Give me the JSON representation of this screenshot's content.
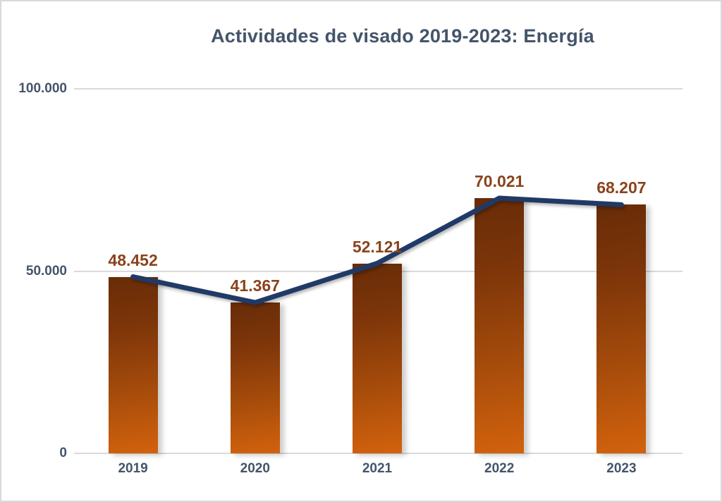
{
  "chart_data": {
    "type": "bar",
    "title": "Actividades de visado 2019-2023: Energía",
    "categories": [
      "2019",
      "2020",
      "2021",
      "2022",
      "2023"
    ],
    "series": [
      {
        "name": "bars",
        "type": "bar",
        "values": [
          48452,
          41367,
          52121,
          70021,
          68207
        ]
      },
      {
        "name": "line",
        "type": "line",
        "values": [
          48452,
          41367,
          52121,
          70021,
          68207
        ]
      }
    ],
    "data_labels": [
      "48.452",
      "41.367",
      "52.121",
      "70.021",
      "68.207"
    ],
    "y_ticks": [
      {
        "value": 0,
        "label": "0"
      },
      {
        "value": 50000,
        "label": "50.000"
      },
      {
        "value": 100000,
        "label": "100.000"
      }
    ],
    "ylim": [
      0,
      100000
    ],
    "xlabel": "",
    "ylabel": "",
    "grid": true,
    "legend": "none"
  },
  "colors": {
    "title": "#44546a",
    "axis_labels": "#44546a",
    "data_labels": "#8a431c",
    "bar_top": "#682c08",
    "bar_bottom": "#d2620d",
    "trend_line": "#203a67",
    "gridline": "#d9d9d9",
    "frame_border": "#d9d9d9",
    "background": "#ffffff"
  }
}
